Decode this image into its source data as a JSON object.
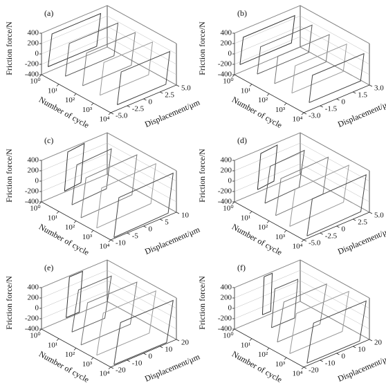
{
  "chart_data": [
    {
      "type": "line3d",
      "title": "(a)",
      "zlabel": "Friction force/N",
      "xlabel": "Number of cycle",
      "ylabel": "Displacement/μm",
      "xscale": "log",
      "xlim": [
        1,
        10000
      ],
      "xticks": [
        {
          "value": 1,
          "label": "10⁰"
        },
        {
          "value": 10,
          "label": "10¹"
        },
        {
          "value": 100,
          "label": "10²"
        },
        {
          "value": 1000,
          "label": "10³"
        },
        {
          "value": 10000,
          "label": "10⁴"
        }
      ],
      "ylim": [
        -5,
        5
      ],
      "yticks": [
        {
          "value": -5,
          "label": "-5.0"
        },
        -2.5,
        0,
        2.5,
        {
          "value": 5,
          "label": "5.0"
        }
      ],
      "zlim": [
        -400,
        400
      ],
      "zticks": [
        -400,
        -200,
        0,
        200,
        400
      ],
      "series": [
        {
          "cycle": 1,
          "color": "#333333",
          "displacement": [
            -4,
            -3.4,
            4,
            3.4,
            -4
          ],
          "force": [
            -300,
            300,
            300,
            -300,
            -300
          ]
        },
        {
          "cycle": 10,
          "color": "#555555",
          "displacement": [
            -4,
            -3.4,
            4,
            3.4,
            -4
          ],
          "force": [
            -300,
            300,
            300,
            -300,
            -300
          ]
        },
        {
          "cycle": 100,
          "color": "#777777",
          "displacement": [
            -4,
            -3.4,
            4,
            3.4,
            -4
          ],
          "force": [
            -300,
            300,
            300,
            -300,
            -300
          ]
        },
        {
          "cycle": 1000,
          "color": "#999999",
          "displacement": [
            -4,
            -3.4,
            4,
            3.4,
            -4
          ],
          "force": [
            -300,
            300,
            300,
            -300,
            -300
          ]
        },
        {
          "cycle": 10000,
          "color": "#444444",
          "displacement": [
            -4,
            -3.4,
            4,
            3.4,
            -4
          ],
          "force": [
            -300,
            300,
            300,
            -300,
            -300
          ]
        }
      ]
    },
    {
      "type": "line3d",
      "title": "(b)",
      "zlabel": "Friction force/N",
      "xlabel": "Number of cycle",
      "ylabel": "Displacement/μm",
      "xscale": "log",
      "xlim": [
        1,
        10000
      ],
      "xticks": [
        {
          "value": 1,
          "label": "10⁰"
        },
        {
          "value": 10,
          "label": "10¹"
        },
        {
          "value": 100,
          "label": "10²"
        },
        {
          "value": 1000,
          "label": "10³"
        },
        {
          "value": 10000,
          "label": "10⁴"
        }
      ],
      "ylim": [
        -3,
        3
      ],
      "yticks": [
        {
          "value": -3,
          "label": "-3.0"
        },
        -1.5,
        0,
        1.5,
        {
          "value": 3,
          "label": "3.0"
        }
      ],
      "zlim": [
        -400,
        400
      ],
      "zticks": [
        -400,
        -200,
        0,
        200,
        400
      ],
      "series": [
        {
          "cycle": 1,
          "color": "#333333",
          "displacement": [
            -2.5,
            -2.2,
            2.5,
            2.2,
            -2.5
          ],
          "force": [
            -250,
            250,
            250,
            -250,
            -250
          ]
        },
        {
          "cycle": 10,
          "color": "#555555",
          "displacement": [
            -2.5,
            -2.2,
            2.5,
            2.2,
            -2.5
          ],
          "force": [
            -250,
            250,
            250,
            -250,
            -250
          ]
        },
        {
          "cycle": 100,
          "color": "#777777",
          "displacement": [
            -2.5,
            -2.2,
            2.5,
            2.2,
            -2.5
          ],
          "force": [
            -250,
            250,
            250,
            -250,
            -250
          ]
        },
        {
          "cycle": 1000,
          "color": "#999999",
          "displacement": [
            -2.5,
            -2.2,
            2.5,
            2.2,
            -2.5
          ],
          "force": [
            -250,
            250,
            250,
            -250,
            -250
          ]
        },
        {
          "cycle": 10000,
          "color": "#444444",
          "displacement": [
            -2.5,
            -2.2,
            2.5,
            2.2,
            -2.5
          ],
          "force": [
            -250,
            250,
            250,
            -250,
            -250
          ]
        }
      ]
    },
    {
      "type": "line3d",
      "title": "(c)",
      "zlabel": "Friction force/N",
      "xlabel": "Number of cycle",
      "ylabel": "Displacement/μm",
      "xscale": "log",
      "xlim": [
        1,
        10000
      ],
      "xticks": [
        {
          "value": 1,
          "label": "10⁰"
        },
        {
          "value": 10,
          "label": "10¹"
        },
        {
          "value": 100,
          "label": "10²"
        },
        {
          "value": 1000,
          "label": "10³"
        },
        {
          "value": 10000,
          "label": "10⁴"
        }
      ],
      "ylim": [
        -10,
        10
      ],
      "yticks": [
        -10,
        -5,
        0,
        5,
        10
      ],
      "zlim": [
        -400,
        400
      ],
      "zticks": [
        -400,
        -200,
        0,
        200,
        400
      ],
      "series": [
        {
          "cycle": 1,
          "color": "#333333",
          "displacement": [
            -3,
            -2,
            3,
            2,
            -3
          ],
          "force": [
            -380,
            350,
            380,
            -350,
            -380
          ]
        },
        {
          "cycle": 10,
          "color": "#555555",
          "displacement": [
            -6,
            -4.5,
            6,
            4.5,
            -6
          ],
          "force": [
            -380,
            350,
            380,
            -350,
            -380
          ]
        },
        {
          "cycle": 100,
          "color": "#777777",
          "displacement": [
            -8.5,
            -7,
            8.5,
            7,
            -8.5
          ],
          "force": [
            -380,
            350,
            380,
            -350,
            -380
          ]
        },
        {
          "cycle": 1000,
          "color": "#999999",
          "displacement": [
            -9,
            -7.5,
            9,
            7.5,
            -9
          ],
          "force": [
            -380,
            350,
            380,
            -350,
            -380
          ]
        },
        {
          "cycle": 10000,
          "color": "#444444",
          "displacement": [
            -9,
            -7.5,
            9,
            7.5,
            -9
          ],
          "force": [
            -380,
            350,
            380,
            -350,
            -380
          ]
        }
      ]
    },
    {
      "type": "line3d",
      "title": "(d)",
      "zlabel": "Friction force/N",
      "xlabel": "Number of cycle",
      "ylabel": "Displacement/μm",
      "xscale": "log",
      "xlim": [
        1,
        10000
      ],
      "xticks": [
        {
          "value": 1,
          "label": "10⁰"
        },
        {
          "value": 10,
          "label": "10¹"
        },
        {
          "value": 100,
          "label": "10²"
        },
        {
          "value": 1000,
          "label": "10³"
        },
        {
          "value": 10000,
          "label": "10⁴"
        }
      ],
      "ylim": [
        -5,
        5
      ],
      "yticks": [
        {
          "value": -5,
          "label": "-5.0"
        },
        -2.5,
        0,
        2.5,
        {
          "value": 5,
          "label": "5.0"
        }
      ],
      "zlim": [
        -400,
        400
      ],
      "zticks": [
        -400,
        -200,
        0,
        200,
        400
      ],
      "series": [
        {
          "cycle": 1,
          "color": "#333333",
          "displacement": [
            -1.5,
            -1,
            1.5,
            1,
            -1.5
          ],
          "force": [
            -350,
            320,
            350,
            -320,
            -350
          ]
        },
        {
          "cycle": 10,
          "color": "#555555",
          "displacement": [
            -3,
            -2.2,
            3,
            2.2,
            -3
          ],
          "force": [
            -350,
            320,
            350,
            -320,
            -350
          ]
        },
        {
          "cycle": 100,
          "color": "#777777",
          "displacement": [
            -4,
            -3.2,
            4,
            3.2,
            -4
          ],
          "force": [
            -350,
            320,
            350,
            -320,
            -350
          ]
        },
        {
          "cycle": 1000,
          "color": "#999999",
          "displacement": [
            -4.5,
            -3.7,
            4.5,
            3.7,
            -4.5
          ],
          "force": [
            -350,
            320,
            350,
            -320,
            -350
          ]
        },
        {
          "cycle": 10000,
          "color": "#444444",
          "displacement": [
            -4.5,
            -3.7,
            4.5,
            3.7,
            -4.5
          ],
          "force": [
            -350,
            320,
            350,
            -320,
            -350
          ]
        }
      ]
    },
    {
      "type": "line3d",
      "title": "(e)",
      "zlabel": "Friction force/N",
      "xlabel": "Number of cycle",
      "ylabel": "Displacement/μm",
      "xscale": "log",
      "xlim": [
        1,
        10000
      ],
      "xticks": [
        {
          "value": 1,
          "label": "10⁰"
        },
        {
          "value": 10,
          "label": "10¹"
        },
        {
          "value": 100,
          "label": "10²"
        },
        {
          "value": 1000,
          "label": "10³"
        },
        {
          "value": 10000,
          "label": "10⁴"
        }
      ],
      "ylim": [
        -20,
        20
      ],
      "yticks": [
        -20,
        -10,
        0,
        10,
        20
      ],
      "zlim": [
        -400,
        400
      ],
      "zticks": [
        -400,
        -200,
        0,
        200,
        400
      ],
      "series": [
        {
          "cycle": 1,
          "color": "#333333",
          "displacement": [
            -5,
            -3,
            5,
            3,
            -5
          ],
          "force": [
            -380,
            380,
            380,
            -380,
            -380
          ]
        },
        {
          "cycle": 10,
          "color": "#555555",
          "displacement": [
            -12,
            -8,
            12,
            8,
            -12
          ],
          "force": [
            -380,
            380,
            380,
            -380,
            -380
          ]
        },
        {
          "cycle": 100,
          "color": "#777777",
          "displacement": [
            -17,
            -13,
            17,
            13,
            -17
          ],
          "force": [
            -380,
            380,
            380,
            -380,
            -380
          ]
        },
        {
          "cycle": 1000,
          "color": "#999999",
          "displacement": [
            -18,
            -14,
            18,
            14,
            -18
          ],
          "force": [
            -380,
            380,
            380,
            -380,
            -380
          ]
        },
        {
          "cycle": 10000,
          "color": "#444444",
          "displacement": [
            -18,
            -14,
            18,
            14,
            -18
          ],
          "force": [
            -380,
            380,
            380,
            -380,
            -380
          ]
        }
      ]
    },
    {
      "type": "line3d",
      "title": "(f)",
      "zlabel": "Friction force/N",
      "xlabel": "Number of cycle",
      "ylabel": "Displacement/μm",
      "xscale": "log",
      "xlim": [
        1,
        10000
      ],
      "xticks": [
        {
          "value": 1,
          "label": "10⁰"
        },
        {
          "value": 10,
          "label": "10¹"
        },
        {
          "value": 100,
          "label": "10²"
        },
        {
          "value": 1000,
          "label": "10³"
        },
        {
          "value": 10000,
          "label": "10⁴"
        }
      ],
      "ylim": [
        -20,
        20
      ],
      "yticks": [
        -20,
        -10,
        0,
        10,
        20
      ],
      "zlim": [
        -400,
        400
      ],
      "zticks": [
        -400,
        -200,
        0,
        200,
        400
      ],
      "series": [
        {
          "cycle": 1,
          "color": "#333333",
          "displacement": [
            -3,
            -2,
            3,
            2,
            -3
          ],
          "force": [
            -350,
            370,
            370,
            -350,
            -350
          ]
        },
        {
          "cycle": 10,
          "color": "#555555",
          "displacement": [
            -8,
            -6,
            8,
            6,
            -8
          ],
          "force": [
            -350,
            370,
            370,
            -350,
            -350
          ]
        },
        {
          "cycle": 100,
          "color": "#777777",
          "displacement": [
            -15,
            -11,
            15,
            11,
            -15
          ],
          "force": [
            -350,
            370,
            370,
            -350,
            -350
          ]
        },
        {
          "cycle": 1000,
          "color": "#999999",
          "displacement": [
            -18,
            -14,
            18,
            14,
            -18
          ],
          "force": [
            -350,
            370,
            370,
            -350,
            -350
          ]
        },
        {
          "cycle": 10000,
          "color": "#444444",
          "displacement": [
            -18,
            -14,
            18,
            14,
            -18
          ],
          "force": [
            -350,
            370,
            370,
            -350,
            -350
          ]
        }
      ]
    }
  ]
}
